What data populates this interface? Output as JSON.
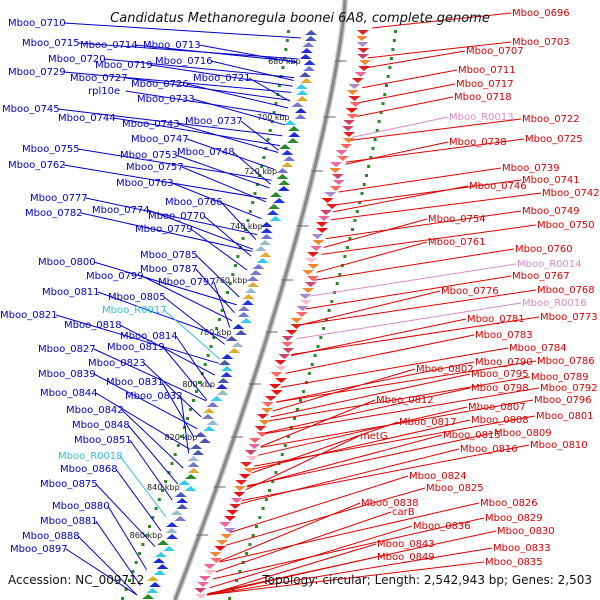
{
  "title": "Candidatus Methanoregula boonei 6A8, complete genome",
  "accession": "Accession: NC_009712",
  "summary": "Topology: circular; Length: 2,542,943 bp; Genes: 2,503",
  "colors": {
    "left_gene": "#0000cc",
    "left_rna": "#33bbdd",
    "right_gene": "#dd0000",
    "right_rna": "#dd88cc",
    "backbone": "#888888",
    "gc_track": "#2a8a2a"
  },
  "kbp_ticks": [
    {
      "label": "680 kbp"
    },
    {
      "label": "700 kbp"
    },
    {
      "label": "720 kbp"
    },
    {
      "label": "740 kbp"
    },
    {
      "label": "760 kbp"
    },
    {
      "label": "780 kbp"
    },
    {
      "label": "800 kbp"
    },
    {
      "label": "820 kbp"
    },
    {
      "label": "840 kbp"
    },
    {
      "label": "860 kbp"
    }
  ],
  "left_labels": [
    {
      "text": "Mboo_0710",
      "kind": "gene"
    },
    {
      "text": "Mboo_0715",
      "kind": "gene"
    },
    {
      "text": "Mboo_0714",
      "kind": "gene"
    },
    {
      "text": "Mboo_0713",
      "kind": "gene"
    },
    {
      "text": "Mboo_0720",
      "kind": "gene"
    },
    {
      "text": "Mboo_0716",
      "kind": "gene"
    },
    {
      "text": "Mboo_0729",
      "kind": "gene"
    },
    {
      "text": "Mboo_0719",
      "kind": "gene"
    },
    {
      "text": "Mboo_0727",
      "kind": "gene"
    },
    {
      "text": "Mboo_0721",
      "kind": "gene"
    },
    {
      "text": "Mboo_0726",
      "kind": "gene"
    },
    {
      "text": "rpl10e",
      "kind": "gene"
    },
    {
      "text": "Mboo_0733",
      "kind": "gene"
    },
    {
      "text": "Mboo_0745",
      "kind": "gene"
    },
    {
      "text": "Mboo_0744",
      "kind": "gene"
    },
    {
      "text": "Mboo_0743",
      "kind": "gene"
    },
    {
      "text": "Mboo_0737",
      "kind": "gene"
    },
    {
      "text": "Mboo_0747",
      "kind": "gene"
    },
    {
      "text": "Mboo_0755",
      "kind": "gene"
    },
    {
      "text": "Mboo_0748",
      "kind": "gene"
    },
    {
      "text": "Mboo_0753",
      "kind": "gene"
    },
    {
      "text": "Mboo_0762",
      "kind": "gene"
    },
    {
      "text": "Mboo_0757",
      "kind": "gene"
    },
    {
      "text": "Mboo_0763",
      "kind": "gene"
    },
    {
      "text": "Mboo_0777",
      "kind": "gene"
    },
    {
      "text": "Mboo_0766",
      "kind": "gene"
    },
    {
      "text": "Mboo_0782",
      "kind": "gene"
    },
    {
      "text": "Mboo_0774",
      "kind": "gene"
    },
    {
      "text": "Mboo_0770",
      "kind": "gene"
    },
    {
      "text": "Mboo_0779",
      "kind": "gene"
    },
    {
      "text": "Mboo_0785",
      "kind": "gene"
    },
    {
      "text": "Mboo_0800",
      "kind": "gene"
    },
    {
      "text": "Mboo_0787",
      "kind": "gene"
    },
    {
      "text": "Mboo_0799",
      "kind": "gene"
    },
    {
      "text": "Mboo_0797",
      "kind": "gene"
    },
    {
      "text": "Mboo_0811",
      "kind": "gene"
    },
    {
      "text": "Mboo_0805",
      "kind": "gene"
    },
    {
      "text": "Mboo_0821",
      "kind": "gene"
    },
    {
      "text": "Mboo_R0017",
      "kind": "rna"
    },
    {
      "text": "Mboo_0818",
      "kind": "gene"
    },
    {
      "text": "Mboo_0814",
      "kind": "gene"
    },
    {
      "text": "Mboo_0827",
      "kind": "gene"
    },
    {
      "text": "Mboo_0819",
      "kind": "gene"
    },
    {
      "text": "Mboo_0823",
      "kind": "gene"
    },
    {
      "text": "Mboo_0839",
      "kind": "gene"
    },
    {
      "text": "Mboo_0831",
      "kind": "gene"
    },
    {
      "text": "Mboo_0844",
      "kind": "gene"
    },
    {
      "text": "Mboo_0832",
      "kind": "gene"
    },
    {
      "text": "Mboo_0842",
      "kind": "gene"
    },
    {
      "text": "Mboo_0848",
      "kind": "gene"
    },
    {
      "text": "Mboo_0851",
      "kind": "gene"
    },
    {
      "text": "Mboo_R0018",
      "kind": "rna"
    },
    {
      "text": "Mboo_0868",
      "kind": "gene"
    },
    {
      "text": "Mboo_0875",
      "kind": "gene"
    },
    {
      "text": "Mboo_0880",
      "kind": "gene"
    },
    {
      "text": "Mboo_0881",
      "kind": "gene"
    },
    {
      "text": "Mboo_0888",
      "kind": "gene"
    },
    {
      "text": "Mboo_0897",
      "kind": "gene"
    }
  ],
  "right_labels": [
    {
      "text": "Mboo_0696",
      "kind": "gene"
    },
    {
      "text": "Mboo_0703",
      "kind": "gene"
    },
    {
      "text": "Mboo_0707",
      "kind": "gene"
    },
    {
      "text": "Mboo_0711",
      "kind": "gene"
    },
    {
      "text": "Mboo_0717",
      "kind": "gene"
    },
    {
      "text": "Mboo_0718",
      "kind": "gene"
    },
    {
      "text": "Mboo_R0013",
      "kind": "rna"
    },
    {
      "text": "Mboo_0722",
      "kind": "gene"
    },
    {
      "text": "Mboo_0738",
      "kind": "gene"
    },
    {
      "text": "Mboo_0725",
      "kind": "gene"
    },
    {
      "text": "Mboo_0739",
      "kind": "gene"
    },
    {
      "text": "Mboo_0741",
      "kind": "gene"
    },
    {
      "text": "Mboo_0746",
      "kind": "gene"
    },
    {
      "text": "Mboo_0742",
      "kind": "gene"
    },
    {
      "text": "Mboo_0749",
      "kind": "gene"
    },
    {
      "text": "Mboo_0754",
      "kind": "gene"
    },
    {
      "text": "Mboo_0750",
      "kind": "gene"
    },
    {
      "text": "Mboo_0761",
      "kind": "gene"
    },
    {
      "text": "Mboo_0760",
      "kind": "gene"
    },
    {
      "text": "Mboo_R0014",
      "kind": "rna"
    },
    {
      "text": "Mboo_0767",
      "kind": "gene"
    },
    {
      "text": "Mboo_0776",
      "kind": "gene"
    },
    {
      "text": "Mboo_0768",
      "kind": "gene"
    },
    {
      "text": "Mboo_R0016",
      "kind": "rna"
    },
    {
      "text": "Mboo_0781",
      "kind": "gene"
    },
    {
      "text": "Mboo_0773",
      "kind": "gene"
    },
    {
      "text": "Mboo_0783",
      "kind": "gene"
    },
    {
      "text": "Mboo_0784",
      "kind": "gene"
    },
    {
      "text": "Mboo_0790",
      "kind": "gene"
    },
    {
      "text": "Mboo_0786",
      "kind": "gene"
    },
    {
      "text": "Mboo_0802",
      "kind": "gene"
    },
    {
      "text": "Mboo_0795",
      "kind": "gene"
    },
    {
      "text": "Mboo_0789",
      "kind": "gene"
    },
    {
      "text": "Mboo_0798",
      "kind": "gene"
    },
    {
      "text": "Mboo_0792",
      "kind": "gene"
    },
    {
      "text": "Mboo_0812",
      "kind": "gene"
    },
    {
      "text": "Mboo_0796",
      "kind": "gene"
    },
    {
      "text": "Mboo_0807",
      "kind": "gene"
    },
    {
      "text": "Mboo_0808",
      "kind": "gene"
    },
    {
      "text": "Mboo_0801",
      "kind": "gene"
    },
    {
      "text": "Mboo_0817",
      "kind": "gene"
    },
    {
      "text": "Mboo_0815",
      "kind": "gene"
    },
    {
      "text": "Mboo_0809",
      "kind": "gene"
    },
    {
      "text": "metG",
      "kind": "gene"
    },
    {
      "text": "Mboo_0816",
      "kind": "gene"
    },
    {
      "text": "Mboo_0810",
      "kind": "gene"
    },
    {
      "text": "Mboo_0824",
      "kind": "gene"
    },
    {
      "text": "Mboo_0825",
      "kind": "gene"
    },
    {
      "text": "Mboo_0838",
      "kind": "gene"
    },
    {
      "text": "Mboo_0826",
      "kind": "gene"
    },
    {
      "text": "carB",
      "kind": "gene"
    },
    {
      "text": "Mboo_0829",
      "kind": "gene"
    },
    {
      "text": "Mboo_0836",
      "kind": "gene"
    },
    {
      "text": "Mboo_0830",
      "kind": "gene"
    },
    {
      "text": "Mboo_0843",
      "kind": "gene"
    },
    {
      "text": "Mboo_0833",
      "kind": "gene"
    },
    {
      "text": "Mboo_0849",
      "kind": "gene"
    },
    {
      "text": "Mboo_0835",
      "kind": "gene"
    }
  ]
}
